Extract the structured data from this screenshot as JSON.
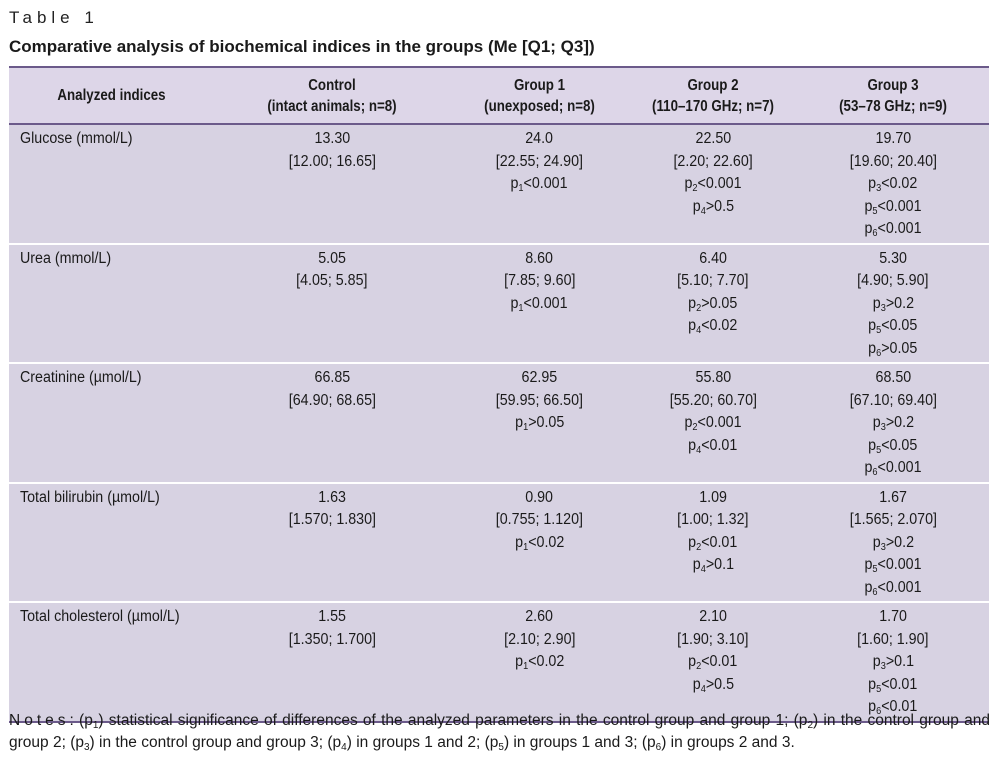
{
  "table_label": "Table 1",
  "table_title": "Comparative analysis of biochemical indices in the groups (Me [Q1; Q3])",
  "header": {
    "col0": "Analyzed indices",
    "col1_l1": "Control",
    "col1_l2": "(intact animals; n=8)",
    "col2_l1": "Group 1",
    "col2_l2": "(unexposed; n=8)",
    "col3_l1": "Group 2",
    "col3_l2": "(110–170 GHz; n=7)",
    "col4_l1": "Group 3",
    "col4_l2": "(53–78 GHz; n=9)"
  },
  "rows": [
    {
      "name": "Glucose (mmol/L)",
      "control": {
        "me": "13.30",
        "iqr": "[12.00; 16.65]"
      },
      "g1": {
        "me": "24.0",
        "iqr": "[22.55; 24.90]",
        "p": [
          {
            "sub": "1",
            "rel": "<0.001"
          }
        ]
      },
      "g2": {
        "me": "22.50",
        "iqr": "[2.20; 22.60]",
        "p": [
          {
            "sub": "2",
            "rel": "<0.001"
          },
          {
            "sub": "4",
            "rel": ">0.5"
          }
        ]
      },
      "g3": {
        "me": "19.70",
        "iqr": "[19.60; 20.40]",
        "p": [
          {
            "sub": "3",
            "rel": "<0.02"
          },
          {
            "sub": "5",
            "rel": "<0.001"
          },
          {
            "sub": "6",
            "rel": "<0.001"
          }
        ]
      }
    },
    {
      "name": "Urea (mmol/L)",
      "control": {
        "me": "5.05",
        "iqr": "[4.05; 5.85]"
      },
      "g1": {
        "me": "8.60",
        "iqr": "[7.85; 9.60]",
        "p": [
          {
            "sub": "1",
            "rel": "<0.001"
          }
        ]
      },
      "g2": {
        "me": "6.40",
        "iqr": "[5.10; 7.70]",
        "p": [
          {
            "sub": "2",
            "rel": ">0.05"
          },
          {
            "sub": "4",
            "rel": "<0.02"
          }
        ]
      },
      "g3": {
        "me": "5.30",
        "iqr": "[4.90; 5.90]",
        "p": [
          {
            "sub": "3",
            "rel": ">0.2"
          },
          {
            "sub": "5",
            "rel": "<0.05"
          },
          {
            "sub": "6",
            "rel": ">0.05"
          }
        ]
      }
    },
    {
      "name": "Creatinine (µmol/L)",
      "control": {
        "me": "66.85",
        "iqr": "[64.90; 68.65]"
      },
      "g1": {
        "me": "62.95",
        "iqr": "[59.95; 66.50]",
        "p": [
          {
            "sub": "1",
            "rel": ">0.05"
          }
        ]
      },
      "g2": {
        "me": "55.80",
        "iqr": "[55.20; 60.70]",
        "p": [
          {
            "sub": "2",
            "rel": "<0.001"
          },
          {
            "sub": "4",
            "rel": "<0.01"
          }
        ]
      },
      "g3": {
        "me": "68.50",
        "iqr": "[67.10; 69.40]",
        "p": [
          {
            "sub": "3",
            "rel": ">0.2"
          },
          {
            "sub": "5",
            "rel": "<0.05"
          },
          {
            "sub": "6",
            "rel": "<0.001"
          }
        ]
      }
    },
    {
      "name": "Total bilirubin (µmol/L)",
      "control": {
        "me": "1.63",
        "iqr": "[1.570; 1.830]"
      },
      "g1": {
        "me": "0.90",
        "iqr": "[0.755; 1.120]",
        "p": [
          {
            "sub": "1",
            "rel": "<0.02"
          }
        ]
      },
      "g2": {
        "me": "1.09",
        "iqr": "[1.00; 1.32]",
        "p": [
          {
            "sub": "2",
            "rel": "<0.01"
          },
          {
            "sub": "4",
            "rel": ">0.1"
          }
        ]
      },
      "g3": {
        "me": "1.67",
        "iqr": "[1.565; 2.070]",
        "p": [
          {
            "sub": "3",
            "rel": ">0.2"
          },
          {
            "sub": "5",
            "rel": "<0.001"
          },
          {
            "sub": "6",
            "rel": "<0.001"
          }
        ]
      }
    },
    {
      "name": "Total cholesterol (µmol/L)",
      "control": {
        "me": "1.55",
        "iqr": "[1.350; 1.700]"
      },
      "g1": {
        "me": "2.60",
        "iqr": "[2.10; 2.90]",
        "p": [
          {
            "sub": "1",
            "rel": "<0.02"
          }
        ]
      },
      "g2": {
        "me": "2.10",
        "iqr": "[1.90; 3.10]",
        "p": [
          {
            "sub": "2",
            "rel": "<0.01"
          },
          {
            "sub": "4",
            "rel": ">0.5"
          }
        ]
      },
      "g3": {
        "me": "1.70",
        "iqr": "[1.60; 1.90]",
        "p": [
          {
            "sub": "3",
            "rel": ">0.1"
          },
          {
            "sub": "5",
            "rel": "<0.01"
          },
          {
            "sub": "6",
            "rel": "<0.01"
          }
        ]
      }
    }
  ],
  "notes": {
    "label": "Notes",
    "parts": [
      {
        "pre": ": (p",
        "sub": "1",
        "post": ") statistical significance of differences of the analyzed parameters in the control group and group 1; "
      },
      {
        "pre": "(p",
        "sub": "2",
        "post": ") in the control group and group 2; "
      },
      {
        "pre": "(p",
        "sub": "3",
        "post": ") in the control group and group 3; "
      },
      {
        "pre": "(p",
        "sub": "4",
        "post": ") in groups 1 and 2; "
      },
      {
        "pre": "(p",
        "sub": "5",
        "post": ") in groups 1 and 3; "
      },
      {
        "pre": "(p",
        "sub": "6",
        "post": ") in groups 2 and 3."
      }
    ]
  },
  "colors": {
    "header_bg": "#ddd6e8",
    "row_bg": "#d7d2e2",
    "rule": "#6b5a8a"
  }
}
